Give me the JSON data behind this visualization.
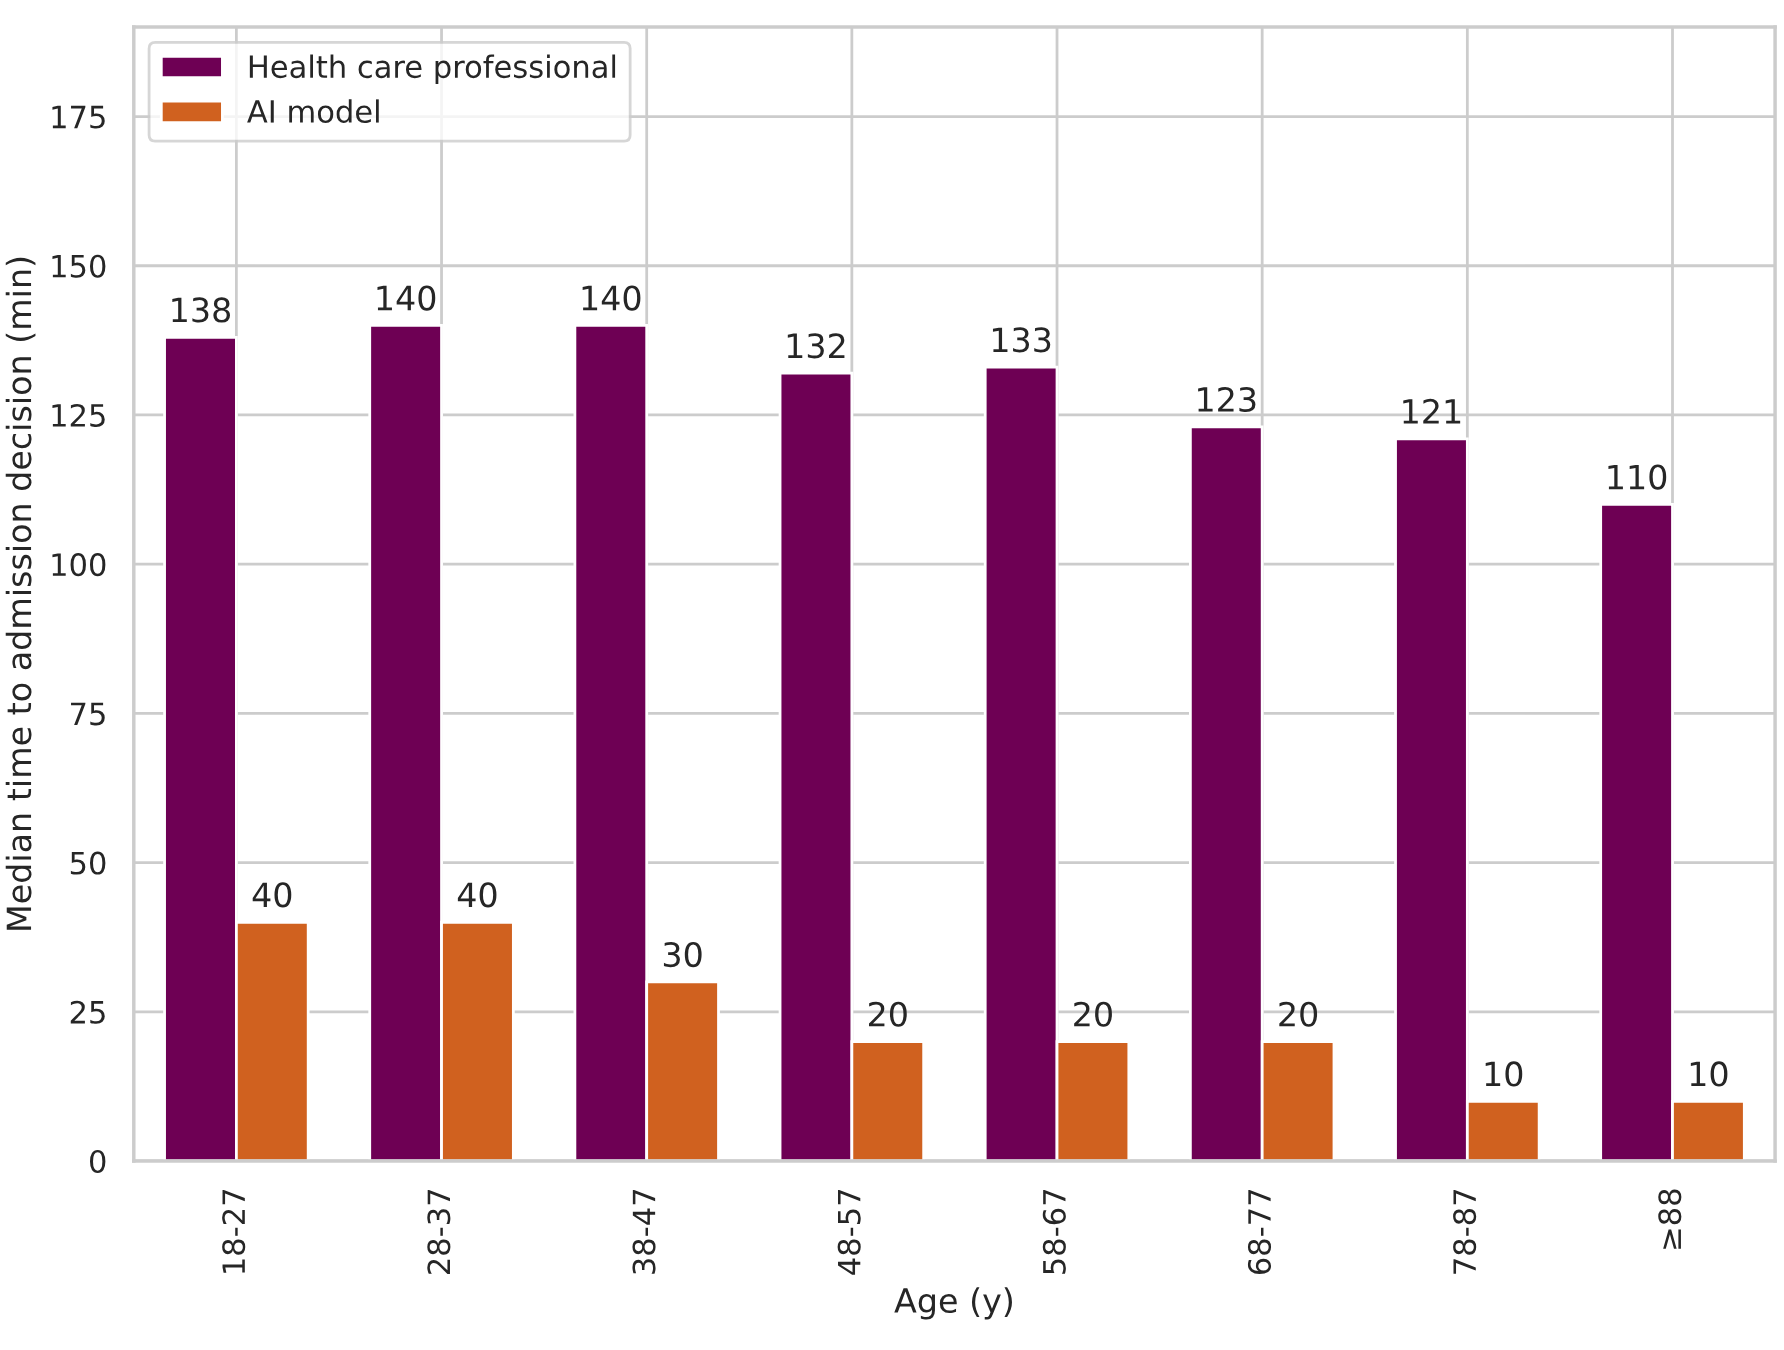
{
  "chart_data": {
    "type": "bar",
    "xlabel": "Age (y)",
    "ylabel": "Median time to admission decision (min)",
    "categories": [
      "18-27",
      "28-37",
      "38-47",
      "48-57",
      "58-67",
      "68-77",
      "78-87",
      "≥88"
    ],
    "series": [
      {
        "name": "Health care professional",
        "color": "#6e0054",
        "values": [
          138,
          140,
          140,
          132,
          133,
          123,
          121,
          110
        ]
      },
      {
        "name": "AI model",
        "color": "#d0611f",
        "values": [
          40,
          40,
          30,
          20,
          20,
          20,
          10,
          10
        ]
      }
    ],
    "ylim": [
      0,
      190
    ],
    "yticks": [
      0,
      25,
      50,
      75,
      100,
      125,
      150,
      175
    ],
    "grid": true,
    "legend": "top left",
    "data_labels": true
  }
}
